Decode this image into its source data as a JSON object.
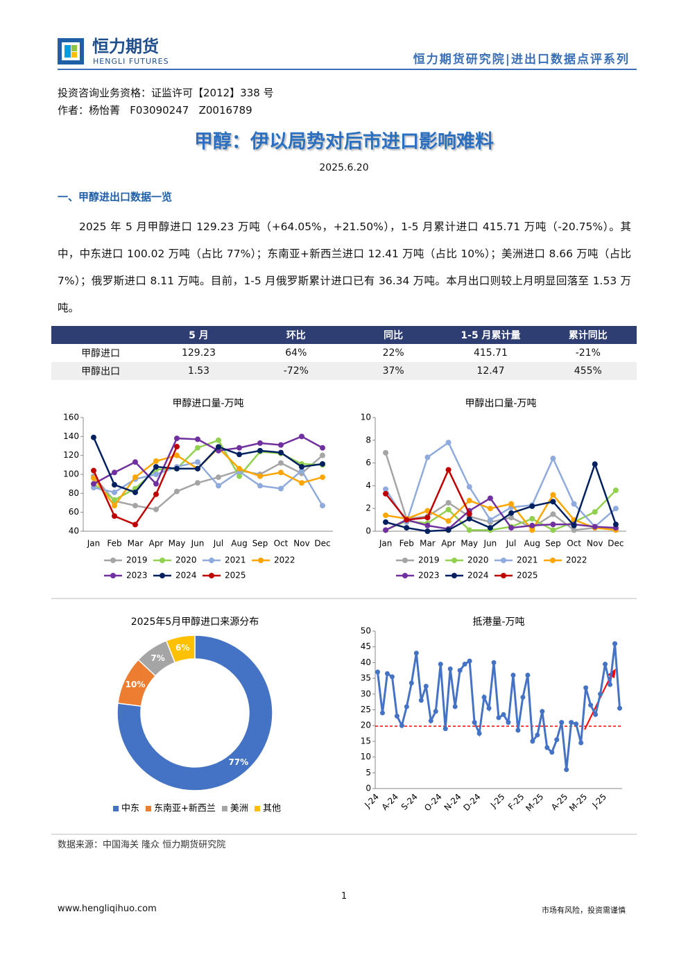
{
  "header": {
    "logo_cn": "恒力期货",
    "logo_en": "HENGLI FUTURES",
    "series_title": "恒力期货研究院|进出口数据点评系列"
  },
  "meta": {
    "license": "投资咨询业务资格：证监许可【2012】338 号",
    "author": "作者：杨怡菁   F03090247   Z0016789"
  },
  "title": "甲醇：伊以局势对后市进口影响难料",
  "date": "2025.6.20",
  "section": "一、甲醇进出口数据一览",
  "paragraph": "2025 年 5 月甲醇进口 129.23 万吨（+64.05%，+21.50%），1-5 月累计进口 415.71 万吨（-20.75%）。其中，中东进口 100.02 万吨（占比 77%）；东南亚+新西兰进口 12.41 万吨（占比 10%）；美洲进口 8.66 万吨（占比 7%）；俄罗斯进口 8.11 万吨。目前，1-5 月俄罗斯累计进口已有 36.34 万吨。本月出口则较上月明显回落至 1.53 万吨。",
  "table": {
    "header": [
      "",
      "5 月",
      "环比",
      "同比",
      "1-5 月累计量",
      "累计同比"
    ],
    "rows": [
      [
        "甲醇进口",
        "129.23",
        "64%",
        "22%",
        "415.71",
        "-21%"
      ],
      [
        "甲醇出口",
        "1.53",
        "-72%",
        "37%",
        "12.47",
        "455%"
      ]
    ]
  },
  "chart_data": [
    {
      "type": "line",
      "title": "甲醇进口量-万吨",
      "categories": [
        "Jan",
        "Feb",
        "Mar",
        "Apr",
        "May",
        "Jun",
        "Jul",
        "Aug",
        "Sep",
        "Oct",
        "Nov",
        "Dec"
      ],
      "ylim": [
        40,
        160
      ],
      "yticks": [
        40,
        60,
        80,
        100,
        120,
        140,
        160
      ],
      "grid": false,
      "series": [
        {
          "name": "2019",
          "color": "#a5a5a5",
          "values": [
            98,
            72,
            67,
            63,
            82,
            91,
            97,
            104,
            100,
            112,
            101,
            120
          ]
        },
        {
          "name": "2020",
          "color": "#92d050",
          "values": [
            90,
            73,
            85,
            105,
            106,
            128,
            136,
            98,
            124,
            122,
            111,
            110
          ]
        },
        {
          "name": "2021",
          "color": "#8faadc",
          "values": [
            86,
            81,
            95,
            100,
            108,
            113,
            88,
            103,
            88,
            85,
            104,
            67
          ]
        },
        {
          "name": "2022",
          "color": "#ffa500",
          "values": [
            96,
            67,
            97,
            114,
            120,
            106,
            128,
            106,
            98,
            102,
            91,
            97
          ]
        },
        {
          "name": "2023",
          "color": "#7030a0",
          "values": [
            90,
            102,
            113,
            90,
            138,
            137,
            125,
            128,
            133,
            131,
            140,
            128
          ]
        },
        {
          "name": "2024",
          "color": "#002060",
          "values": [
            139,
            89,
            81,
            108,
            106,
            106,
            129,
            121,
            125,
            123,
            108,
            111
          ]
        },
        {
          "name": "2025",
          "color": "#c00000",
          "values": [
            104,
            56,
            47,
            79,
            129.23,
            null,
            null,
            null,
            null,
            null,
            null,
            null
          ]
        }
      ]
    },
    {
      "type": "line",
      "title": "甲醇出口量-万吨",
      "categories": [
        "Jan",
        "Feb",
        "Mar",
        "Apr",
        "May",
        "Jun",
        "Jul",
        "Aug",
        "Sep",
        "Oct",
        "Nov",
        "Dec"
      ],
      "ylim": [
        0,
        10
      ],
      "yticks": [
        0,
        2,
        4,
        6,
        8,
        10
      ],
      "grid": false,
      "series": [
        {
          "name": "2019",
          "color": "#a5a5a5",
          "values": [
            6.9,
            1.1,
            1.3,
            2.5,
            1.3,
            0.8,
            1.2,
            0.3,
            1.5,
            0.1,
            0.3,
            0.2
          ]
        },
        {
          "name": "2020",
          "color": "#92d050",
          "values": [
            0.1,
            0.9,
            0.7,
            1.9,
            0.1,
            0.1,
            0.4,
            1.1,
            0.1,
            0.8,
            1.7,
            3.6
          ]
        },
        {
          "name": "2021",
          "color": "#8faadc",
          "values": [
            3.7,
            0.8,
            6.5,
            7.8,
            3.9,
            1.0,
            2.1,
            2.3,
            6.4,
            2.4,
            0.4,
            2.0
          ]
        },
        {
          "name": "2022",
          "color": "#ffa500",
          "values": [
            1.4,
            1.1,
            1.8,
            0.9,
            2.7,
            2.0,
            2.4,
            0.1,
            3.2,
            1.0,
            0.3,
            0.1
          ]
        },
        {
          "name": "2023",
          "color": "#7030a0",
          "values": [
            0.1,
            1.0,
            0.5,
            0.2,
            1.8,
            2.9,
            0.3,
            0.5,
            0.6,
            0.6,
            0.4,
            0.3
          ]
        },
        {
          "name": "2024",
          "color": "#002060",
          "values": [
            0.8,
            0.3,
            0.0,
            0.1,
            1.1,
            0.3,
            1.6,
            2.2,
            2.6,
            0.5,
            5.9,
            0.6
          ]
        },
        {
          "name": "2025",
          "color": "#c00000",
          "values": [
            3.3,
            1.0,
            1.2,
            5.4,
            1.53,
            null,
            null,
            null,
            null,
            null,
            null,
            null
          ]
        }
      ]
    },
    {
      "type": "donut",
      "title": "2025年5月甲醇进口来源分布",
      "categories": [
        "中东",
        "东南亚+新西兰",
        "美洲",
        "其他"
      ],
      "values": [
        77,
        10,
        7,
        6
      ],
      "value_labels": [
        "77%",
        "10%",
        "7%",
        "6%"
      ],
      "colors": [
        "#4472c4",
        "#ed7d31",
        "#a5a5a5",
        "#ffc000"
      ]
    },
    {
      "type": "line",
      "title": "抵港量-万吨",
      "categories": [
        "J-24",
        null,
        null,
        null,
        "A-24",
        null,
        null,
        null,
        "S-24",
        null,
        null,
        null,
        null,
        "O-24",
        null,
        null,
        null,
        "N-24",
        null,
        null,
        null,
        "D-24",
        null,
        null,
        null,
        null,
        "J-25",
        null,
        null,
        null,
        "F-25",
        null,
        null,
        null,
        "M-25",
        null,
        null,
        null,
        null,
        "A-25",
        null,
        null,
        null,
        "M-25",
        null,
        null,
        null,
        "J-25",
        null,
        null,
        null
      ],
      "ylim": [
        0,
        50
      ],
      "yticks": [
        0,
        5,
        10,
        15,
        20,
        25,
        30,
        35,
        40,
        45,
        50
      ],
      "grid": false,
      "reference_line": {
        "value": 19.8,
        "color": "#ff0000"
      },
      "series": [
        {
          "color": "#4472c4",
          "values": [
            37,
            24,
            36.5,
            35.5,
            23,
            20,
            26,
            33.5,
            43,
            28,
            32.5,
            21.5,
            24.5,
            39.5,
            19,
            38,
            26,
            37.5,
            39.5,
            40.5,
            21,
            17.5,
            29,
            25.5,
            40,
            22.5,
            23.5,
            21,
            36,
            18.5,
            29,
            36,
            15,
            17,
            24.5,
            13,
            11.5,
            15.5,
            21,
            6,
            21,
            20.5,
            14.5,
            32,
            26.5,
            23.5,
            30,
            39.5,
            33,
            46,
            25.5
          ]
        }
      ]
    }
  ],
  "source": "数据来源：中国海关 隆众 恒力期货研究院",
  "page_number": "1",
  "footer": {
    "url": "www.hengliqihuo.com",
    "disclaimer": "市场有风险，投资需谨慎"
  }
}
